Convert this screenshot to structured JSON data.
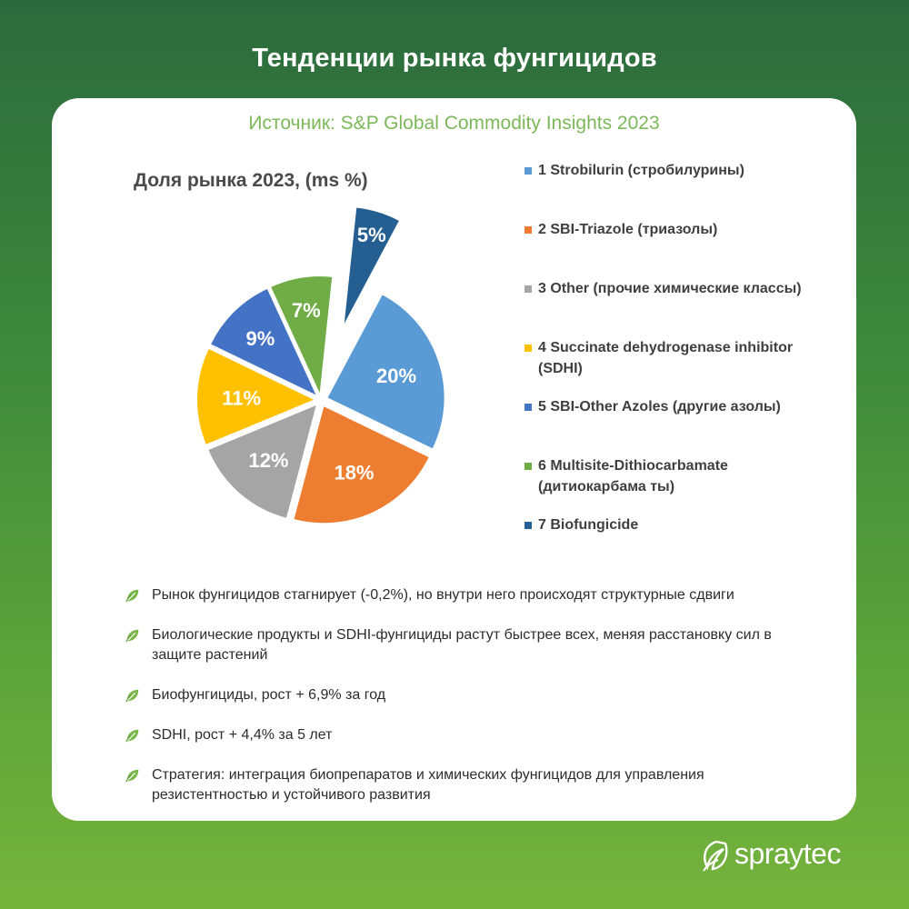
{
  "page": {
    "title": "Тенденции рынка фунгицидов",
    "source": "Источник: S&P Global Commodity Insights  2023",
    "brand": "spraytec"
  },
  "chart_data": {
    "type": "pie",
    "title": "Доля рынка 2023, (ms %)",
    "slices": [
      {
        "label": "1 Strobilurin (стробилурины)",
        "value": 20,
        "display": "20%",
        "color": "#5b9bd5"
      },
      {
        "label": "2 SBI-Triazole (триазолы)",
        "value": 18,
        "display": "18%",
        "color": "#ed7d31"
      },
      {
        "label": "3 Other (прочие химические классы)",
        "value": 12,
        "display": "12%",
        "color": "#a5a5a5"
      },
      {
        "label": "4 Succinate dehydrogenase inhibitor (SDHI)",
        "value": 11,
        "display": "11%",
        "color": "#ffc000"
      },
      {
        "label": "5 SBI-Other Azoles (другие азолы)",
        "value": 9,
        "display": "9%",
        "color": "#4472c4"
      },
      {
        "label": "6 Multisite-Dithiocarbamate (дитиокарбама ты)",
        "value": 7,
        "display": "7%",
        "color": "#70ad47"
      },
      {
        "label": "7 Biofungicide",
        "value": 5,
        "display": "5%",
        "color": "#255e91"
      }
    ],
    "legend_position": "right"
  },
  "bullets": [
    "Рынок фунгицидов стагнирует (-0,2%), но внутри него происходят структурные сдвиги",
    "Биологические продукты и SDHI-фунгициды растут быстрее всех, меняя расстановку сил в защите растений",
    "Биофунгициды, рост + 6,9% за год",
    "SDHI, рост + 4,4% за 5 лет",
    "Стратегия: интеграция биопрепаратов и химических фунгицидов для управления резистентностью и устойчивого развития"
  ],
  "colors": {
    "bg_top": "#2b6a3d",
    "bg_bottom": "#76b33c",
    "source_text": "#7cb85a",
    "leaf": "#7ab648"
  },
  "icons": {
    "bullet": "leaf-icon",
    "logo": "spraytec-leaf-logo"
  }
}
